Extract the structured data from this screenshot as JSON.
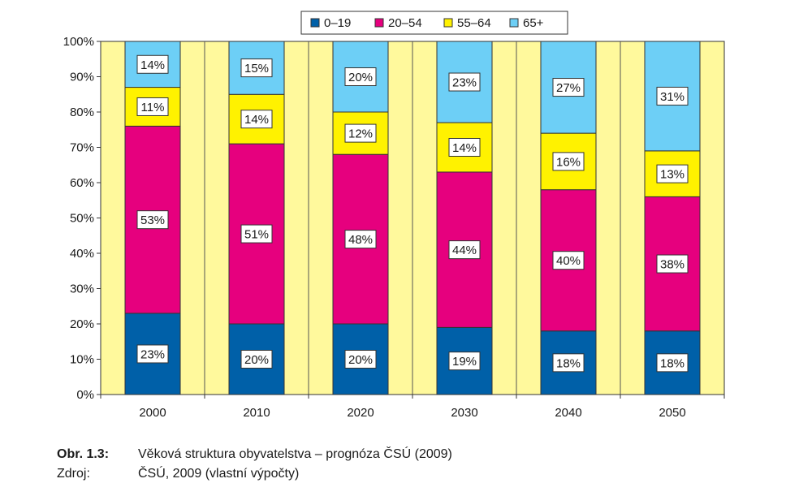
{
  "chart_data": {
    "type": "bar",
    "stacked": true,
    "categories": [
      "2000",
      "2010",
      "2020",
      "2030",
      "2040",
      "2050"
    ],
    "series": [
      {
        "name": "0–19",
        "color": "#0060a8",
        "values": [
          23,
          20,
          20,
          19,
          18,
          18
        ],
        "labels": [
          "23%",
          "20%",
          "20%",
          "19%",
          "18%",
          "18%"
        ]
      },
      {
        "name": "20–54",
        "color": "#e6007e",
        "values": [
          53,
          51,
          48,
          44,
          40,
          38
        ],
        "labels": [
          "53%",
          "51%",
          "48%",
          "44%",
          "40%",
          "38%"
        ]
      },
      {
        "name": "55–64",
        "color": "#fff200",
        "values": [
          11,
          14,
          12,
          14,
          16,
          13
        ],
        "labels": [
          "11%",
          "14%",
          "12%",
          "14%",
          "16%",
          "13%"
        ]
      },
      {
        "name": "65+",
        "color": "#6dcff6",
        "values": [
          14,
          15,
          20,
          23,
          27,
          31
        ],
        "labels": [
          "14%",
          "15%",
          "20%",
          "23%",
          "27%",
          "31%"
        ]
      }
    ],
    "ylim": [
      0,
      100
    ],
    "yticks": [
      "0%",
      "10%",
      "20%",
      "30%",
      "40%",
      "50%",
      "60%",
      "70%",
      "80%",
      "90%",
      "100%"
    ],
    "plot_background": "#fff99c",
    "grid": "vertical bands",
    "legend_position": "top"
  },
  "caption": {
    "figure_label": "Obr. 1.3:",
    "figure_text": "Věková struktura obyvatelstva – prognóza ČSÚ (2009)",
    "source_label": "Zdroj:",
    "source_text": "ČSÚ, 2009 (vlastní výpočty)"
  }
}
